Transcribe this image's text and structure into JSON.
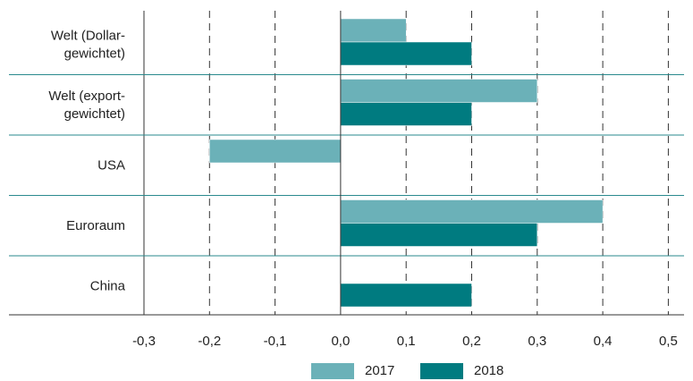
{
  "chart_data": {
    "type": "bar",
    "orientation": "horizontal",
    "title": "",
    "xlabel": "",
    "ylabel": "",
    "categories": [
      [
        "Welt (Dollar-",
        "gewichtet)"
      ],
      [
        "Welt (export-",
        "gewichtet)"
      ],
      [
        "USA"
      ],
      [
        "Euroraum"
      ],
      [
        "China"
      ]
    ],
    "series": [
      {
        "name": "2017",
        "color": "#6bb1b8",
        "values": [
          0.1,
          0.3,
          -0.2,
          0.4,
          0.0
        ]
      },
      {
        "name": "2018",
        "color": "#007b80",
        "values": [
          0.2,
          0.2,
          0.0,
          0.3,
          0.2
        ]
      }
    ],
    "xlim": [
      -0.3,
      0.5
    ],
    "xticks": [
      "-0,3",
      "-0,2",
      "-0,1",
      "0,0",
      "0,1",
      "0,2",
      "0,3",
      "0,4",
      "0,5"
    ],
    "grid": "dashed vertical",
    "legend": "bottom"
  }
}
